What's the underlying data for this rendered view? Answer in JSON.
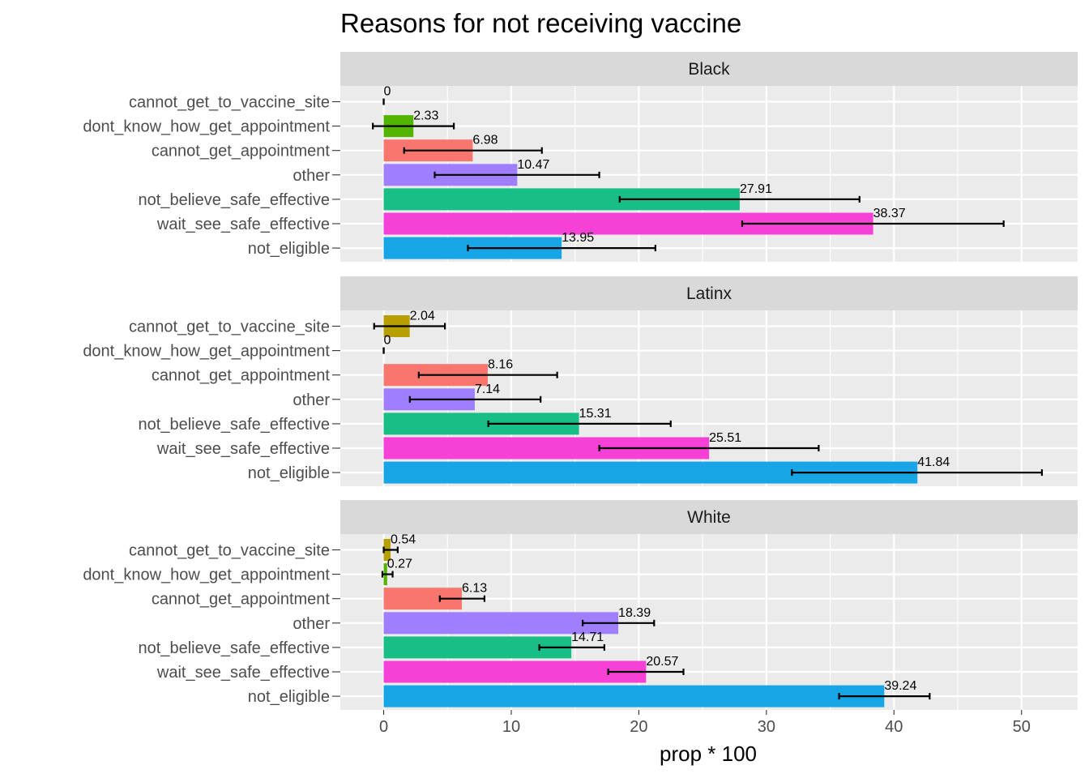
{
  "chart_data": {
    "type": "bar",
    "orientation": "horizontal",
    "title": "Reasons for not receiving vaccine",
    "xlabel": "prop * 100",
    "ylabel": "",
    "xlim": [
      -3.4,
      54.4
    ],
    "xticks": [
      0,
      10,
      20,
      30,
      40,
      50
    ],
    "grid": true,
    "legend": "none",
    "categories": [
      "cannot_get_to_vaccine_site",
      "dont_know_how_get_appointment",
      "cannot_get_appointment",
      "other",
      "not_believe_safe_effective",
      "wait_see_safe_effective",
      "not_eligible"
    ],
    "colors": [
      "#B79F00",
      "#53B400",
      "#F8766D",
      "#9F7FFF",
      "#17BE85",
      "#F640D6",
      "#17A5E6"
    ],
    "panels": [
      {
        "name": "Black",
        "values": [
          0,
          2.33,
          6.98,
          10.47,
          27.91,
          38.37,
          13.95
        ],
        "labels": [
          "0",
          "2.33",
          "6.98",
          "10.47",
          "27.91",
          "38.37",
          "13.95"
        ],
        "error_low": [
          0,
          -0.85,
          1.6,
          4.0,
          18.5,
          28.1,
          6.6
        ],
        "error_high": [
          0,
          5.5,
          12.4,
          16.9,
          37.3,
          48.6,
          21.3
        ]
      },
      {
        "name": "Latinx",
        "values": [
          2.04,
          0,
          8.16,
          7.14,
          15.31,
          25.51,
          41.84
        ],
        "labels": [
          "2.04",
          "0",
          "8.16",
          "7.14",
          "15.31",
          "25.51",
          "41.84"
        ],
        "error_low": [
          -0.75,
          0,
          2.75,
          2.05,
          8.2,
          16.9,
          32.0
        ],
        "error_high": [
          4.8,
          0,
          13.6,
          12.3,
          22.5,
          34.1,
          51.6
        ]
      },
      {
        "name": "White",
        "values": [
          0.54,
          0.27,
          6.13,
          18.39,
          14.71,
          20.57,
          39.24
        ],
        "labels": [
          "0.54",
          "0.27",
          "6.13",
          "18.39",
          "14.71",
          "20.57",
          "39.24"
        ],
        "error_low": [
          0.0,
          -0.1,
          4.4,
          15.6,
          12.2,
          17.6,
          35.7
        ],
        "error_high": [
          1.1,
          0.7,
          7.9,
          21.2,
          17.3,
          23.5,
          42.8
        ]
      }
    ]
  }
}
